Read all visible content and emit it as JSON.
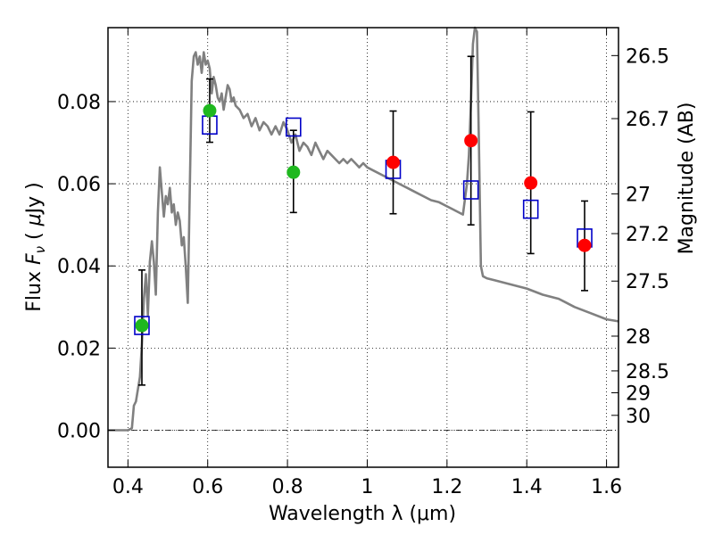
{
  "chart_data": {
    "type": "scatter",
    "xlabel": "Wavelength  λ (μm)",
    "ylabel": "Flux  F_ν  ( μJy )",
    "ylabel_parts": [
      "Flux  ",
      "F",
      "ν",
      "  ( ",
      "μ",
      "Jy )"
    ],
    "y2label": "Magnitude (AB)",
    "xlim": [
      0.35,
      1.63
    ],
    "ylim": [
      -0.009,
      0.098
    ],
    "x_ticks": [
      {
        "value": 0.4,
        "label": "0.4"
      },
      {
        "value": 0.6,
        "label": "0.6"
      },
      {
        "value": 0.8,
        "label": "0.8"
      },
      {
        "value": 1.0,
        "label": "1"
      },
      {
        "value": 1.2,
        "label": "1.2"
      },
      {
        "value": 1.4,
        "label": "1.4"
      },
      {
        "value": 1.6,
        "label": "1.6"
      }
    ],
    "y_ticks": [
      {
        "value": 0.0,
        "label": "0.00"
      },
      {
        "value": 0.02,
        "label": "0.02"
      },
      {
        "value": 0.04,
        "label": "0.04"
      },
      {
        "value": 0.06,
        "label": "0.06"
      },
      {
        "value": 0.08,
        "label": "0.08"
      }
    ],
    "y2_ticks": [
      {
        "value": 26.5,
        "label": "26.5"
      },
      {
        "value": 26.7,
        "label": "26.7"
      },
      {
        "value": 27.0,
        "label": "27"
      },
      {
        "value": 27.2,
        "label": "27.2"
      },
      {
        "value": 27.5,
        "label": "27.5"
      },
      {
        "value": 28.0,
        "label": "28"
      },
      {
        "value": 28.5,
        "label": "28.5"
      },
      {
        "value": 29.0,
        "label": "29"
      },
      {
        "value": 30.0,
        "label": "30"
      }
    ],
    "grid": true,
    "zero_line": true,
    "series": [
      {
        "kind": "model_spectrum",
        "color": "#808080",
        "x": [
          0.35,
          0.4,
          0.41,
          0.415,
          0.42,
          0.43,
          0.435,
          0.44,
          0.445,
          0.45,
          0.455,
          0.46,
          0.465,
          0.47,
          0.475,
          0.48,
          0.485,
          0.49,
          0.495,
          0.5,
          0.505,
          0.51,
          0.515,
          0.52,
          0.525,
          0.53,
          0.535,
          0.54,
          0.545,
          0.55,
          0.555,
          0.56,
          0.565,
          0.57,
          0.575,
          0.58,
          0.585,
          0.59,
          0.595,
          0.6,
          0.605,
          0.61,
          0.615,
          0.62,
          0.625,
          0.63,
          0.635,
          0.64,
          0.645,
          0.65,
          0.655,
          0.66,
          0.665,
          0.67,
          0.68,
          0.69,
          0.7,
          0.71,
          0.72,
          0.73,
          0.74,
          0.75,
          0.76,
          0.77,
          0.78,
          0.79,
          0.8,
          0.81,
          0.82,
          0.83,
          0.84,
          0.85,
          0.86,
          0.87,
          0.88,
          0.89,
          0.9,
          0.91,
          0.92,
          0.93,
          0.94,
          0.95,
          0.96,
          0.97,
          0.98,
          0.99,
          1.0,
          1.02,
          1.04,
          1.06,
          1.08,
          1.1,
          1.12,
          1.14,
          1.16,
          1.18,
          1.2,
          1.22,
          1.24,
          1.25,
          1.255,
          1.26,
          1.265,
          1.27,
          1.275,
          1.28,
          1.285,
          1.29,
          1.3,
          1.32,
          1.36,
          1.4,
          1.44,
          1.48,
          1.52,
          1.56,
          1.6,
          1.63
        ],
        "y": [
          0.0,
          0.0,
          0.0005,
          0.006,
          0.007,
          0.013,
          0.021,
          0.032,
          0.038,
          0.028,
          0.041,
          0.046,
          0.041,
          0.033,
          0.053,
          0.064,
          0.058,
          0.052,
          0.057,
          0.055,
          0.059,
          0.053,
          0.055,
          0.05,
          0.053,
          0.051,
          0.045,
          0.047,
          0.04,
          0.031,
          0.058,
          0.085,
          0.091,
          0.092,
          0.089,
          0.091,
          0.087,
          0.092,
          0.089,
          0.09,
          0.088,
          0.082,
          0.086,
          0.084,
          0.081,
          0.08,
          0.082,
          0.078,
          0.081,
          0.084,
          0.083,
          0.08,
          0.081,
          0.079,
          0.078,
          0.076,
          0.077,
          0.074,
          0.076,
          0.073,
          0.075,
          0.074,
          0.072,
          0.074,
          0.072,
          0.075,
          0.073,
          0.07,
          0.072,
          0.068,
          0.07,
          0.069,
          0.067,
          0.07,
          0.068,
          0.066,
          0.068,
          0.067,
          0.066,
          0.065,
          0.066,
          0.065,
          0.066,
          0.065,
          0.064,
          0.065,
          0.064,
          0.063,
          0.062,
          0.061,
          0.06,
          0.059,
          0.058,
          0.057,
          0.056,
          0.0555,
          0.0545,
          0.0535,
          0.0525,
          0.06,
          0.067,
          0.08,
          0.094,
          0.098,
          0.097,
          0.07,
          0.04,
          0.0375,
          0.037,
          0.0365,
          0.0355,
          0.0345,
          0.033,
          0.032,
          0.03,
          0.0285,
          0.027,
          0.0265
        ]
      },
      {
        "kind": "model_flux_boxes",
        "marker": "open-square",
        "color": "#0000c8",
        "x": [
          0.435,
          0.605,
          0.815,
          1.065,
          1.26,
          1.41,
          1.545
        ],
        "y": [
          0.0255,
          0.0743,
          0.0738,
          0.0635,
          0.0585,
          0.0538,
          0.0468
        ]
      },
      {
        "kind": "observed_flux_green",
        "marker": "filled-circle",
        "color": "#1fb81f",
        "x": [
          0.435,
          0.605,
          0.815
        ],
        "y": [
          0.0255,
          0.0778,
          0.0628
        ],
        "y_err_low": [
          0.0145,
          0.0077,
          0.0098
        ],
        "y_err_high": [
          0.0135,
          0.0077,
          0.0102
        ]
      },
      {
        "kind": "observed_flux_red",
        "marker": "filled-circle",
        "color": "#ff0000",
        "x": [
          1.065,
          1.26,
          1.41,
          1.545
        ],
        "y": [
          0.0652,
          0.0705,
          0.0602,
          0.045
        ],
        "y_err_low": [
          0.0125,
          0.0205,
          0.0172,
          0.011
        ],
        "y_err_high": [
          0.0125,
          0.0205,
          0.0173,
          0.0108
        ]
      }
    ]
  }
}
